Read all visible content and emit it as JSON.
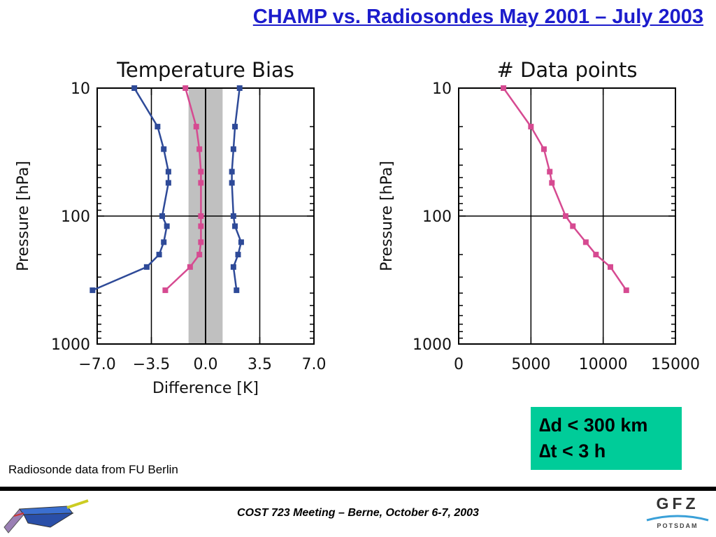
{
  "slide": {
    "title": "CHAMP vs. Radiosondes May 2001 – July 2003",
    "source_note": "Radiosonde data from FU Berlin",
    "footer": "COST 723 Meeting – Berne, October 6-7, 2003",
    "info_box": {
      "line1": "∆d  <  300 km",
      "line2": "∆t   <  3 h",
      "color": "#00cc99"
    },
    "logo": {
      "letters": "GFZ",
      "city": "POTSDAM"
    }
  },
  "chart_data": [
    {
      "type": "line",
      "title": "Temperature Bias",
      "xlabel": "Difference [K]",
      "ylabel": "Pressure [hPa]",
      "xlim": [
        -7.0,
        7.0
      ],
      "ylim": [
        1000,
        10
      ],
      "yscale": "log",
      "xticks": [
        "−7.0",
        "−3.5",
        "0.0",
        "3.5",
        "7.0"
      ],
      "yticks": [
        "10",
        "100",
        "1000"
      ],
      "shaded_band": {
        "x": [
          -1.1,
          1.1
        ],
        "color": "#c0c0c0"
      },
      "vertical_reference": 0.0,
      "series": [
        {
          "color": "#2e4a98",
          "points": [
            [
              -4.6,
              10
            ],
            [
              -3.1,
              20
            ],
            [
              -2.7,
              30
            ],
            [
              -2.4,
              45
            ],
            [
              -2.4,
              55
            ],
            [
              -2.8,
              100
            ],
            [
              -2.5,
              120
            ],
            [
              -2.7,
              160
            ],
            [
              -3.0,
              200
            ],
            [
              -3.8,
              250
            ],
            [
              -7.3,
              380
            ]
          ]
        },
        {
          "color": "#d64a91",
          "points": [
            [
              -1.3,
              10
            ],
            [
              -0.6,
              20
            ],
            [
              -0.4,
              30
            ],
            [
              -0.3,
              45
            ],
            [
              -0.3,
              55
            ],
            [
              -0.3,
              100
            ],
            [
              -0.3,
              120
            ],
            [
              -0.3,
              160
            ],
            [
              -0.4,
              200
            ],
            [
              -1.0,
              250
            ],
            [
              -2.6,
              380
            ]
          ]
        },
        {
          "color": "#2e4a98",
          "points": [
            [
              2.2,
              10
            ],
            [
              1.9,
              20
            ],
            [
              1.8,
              30
            ],
            [
              1.7,
              45
            ],
            [
              1.7,
              55
            ],
            [
              1.8,
              100
            ],
            [
              1.9,
              120
            ],
            [
              2.3,
              160
            ],
            [
              2.1,
              200
            ],
            [
              1.8,
              250
            ],
            [
              2.0,
              380
            ]
          ]
        }
      ]
    },
    {
      "type": "line",
      "title": "# Data points",
      "xlabel": "",
      "ylabel": "Pressure [hPa]",
      "xlim": [
        0,
        15000
      ],
      "ylim": [
        1000,
        10
      ],
      "yscale": "log",
      "xticks": [
        "0",
        "5000",
        "10000",
        "15000"
      ],
      "yticks": [
        "10",
        "100",
        "1000"
      ],
      "series": [
        {
          "color": "#d64a91",
          "points": [
            [
              3100,
              10
            ],
            [
              5000,
              20
            ],
            [
              5900,
              30
            ],
            [
              6300,
              45
            ],
            [
              6450,
              55
            ],
            [
              7400,
              100
            ],
            [
              7900,
              120
            ],
            [
              8800,
              160
            ],
            [
              9500,
              200
            ],
            [
              10500,
              250
            ],
            [
              11600,
              380
            ]
          ]
        }
      ]
    }
  ]
}
